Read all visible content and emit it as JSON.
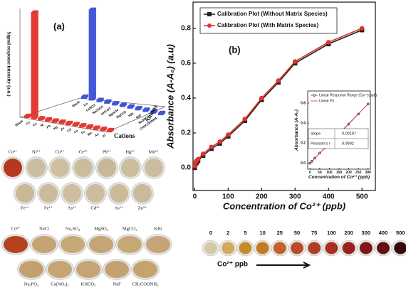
{
  "chart_data": [
    {
      "type": "bar3d",
      "label": "(a)",
      "ylabel": "Signal response intensity (a.u.)",
      "series": [
        {
          "name": "Cations",
          "color": "#e2322b",
          "categories": [
            "Blank",
            "Co",
            "Cu",
            "Ni",
            "Pb",
            "Hg",
            "Zn",
            "Cd",
            "Ce",
            "Fe",
            "Mn",
            "As",
            "Al"
          ],
          "values": [
            0.02,
            1.0,
            0.02,
            0.02,
            0.02,
            0.02,
            0.02,
            0.02,
            0.02,
            0.02,
            0.02,
            0.02,
            0.02
          ]
        },
        {
          "name": "Anions",
          "color": "#3b4fd6",
          "categories": [
            "Blank",
            "Co",
            "CaNO3",
            "Na2SO4",
            "KHCO3",
            "MgSO4",
            "MgCO3",
            "KBr",
            "NaF",
            "Na3PO4",
            "CH3COONH4"
          ],
          "values": [
            0.02,
            0.85,
            0.02,
            0.02,
            0.02,
            0.02,
            0.02,
            0.02,
            0.02,
            0.02,
            0.02
          ]
        }
      ]
    },
    {
      "type": "line",
      "label": "(b)",
      "xlabel": "Concentration of Co²⁺ (ppb)",
      "ylabel": "Absorbance (A-A₀) (a.u)",
      "x": [
        0,
        2,
        5,
        10,
        25,
        50,
        75,
        100,
        150,
        200,
        250,
        300,
        400,
        500
      ],
      "series": [
        {
          "name": "Calibration Plot (Without Matrix Species)",
          "color": "#222222",
          "marker": "square",
          "values": [
            0.0,
            0.02,
            0.03,
            0.04,
            0.07,
            0.11,
            0.14,
            0.18,
            0.27,
            0.39,
            0.49,
            0.6,
            0.71,
            0.79
          ]
        },
        {
          "name": "Calibration Plot (With Matrix Species)",
          "color": "#e2322b",
          "marker": "circle",
          "values": [
            0.01,
            0.03,
            0.04,
            0.05,
            0.08,
            0.12,
            0.15,
            0.19,
            0.28,
            0.4,
            0.5,
            0.61,
            0.72,
            0.8
          ]
        }
      ],
      "xlim": [
        -5,
        540
      ],
      "ylim": [
        -0.13,
        0.95
      ],
      "xticks": [
        0,
        100,
        200,
        300,
        400,
        500
      ],
      "yticks": [
        {
          "value": 0,
          "label": "0.0"
        },
        0.2,
        0.4,
        0.6,
        0.8
      ]
    },
    {
      "type": "line",
      "xlabel": "Concentration of Co²⁺ (ppb)",
      "ylabel": "Absorbance (A-A₀)",
      "x": [
        0,
        10,
        25,
        50,
        75,
        100,
        150,
        200,
        250,
        300
      ],
      "series": [
        {
          "name": "Linear Response Range (Co²⁺)(ppb)",
          "color": "#333333",
          "marker": "circle",
          "values": [
            0.0,
            0.02,
            0.05,
            0.1,
            0.15,
            0.2,
            0.29,
            0.39,
            0.49,
            0.59
          ]
        }
      ],
      "fit": {
        "name": "Linear Fit",
        "color": "#e2322b",
        "slope_label": "Slope",
        "slope": 0.00197,
        "r_label": "Pearson's r",
        "r": 0.9992
      },
      "xlim": [
        -12,
        312
      ],
      "ylim": [
        -0.06,
        0.72
      ],
      "xticks": [
        0,
        50,
        100,
        150,
        200,
        250,
        300
      ],
      "yticks": [
        {
          "value": 0,
          "label": "0.0"
        },
        0.2,
        0.4,
        0.6
      ]
    }
  ],
  "photos": {
    "rows": [
      {
        "labels": [
          "Co²⁺",
          "Ni²⁺",
          "Cu²⁺",
          "Ce³⁺",
          "Pb²⁺",
          "Hg²⁺",
          "Mn²⁺"
        ],
        "colors": [
          "#b43a1f",
          "#cbbd9f",
          "#cdbf9f",
          "#cbbd9c",
          "#c8b898",
          "#cbbe9f",
          "#cbbd9d"
        ]
      },
      {
        "labels": [
          "Fe²⁺",
          "Fe³⁺",
          "As³⁺",
          "Cd²⁺",
          "As⁵⁺",
          "Zn²⁺"
        ],
        "colors": [
          "#c9b997",
          "#cbbb99",
          "#cdbf9f",
          "#cbbd9d",
          "#cabb99",
          "#c9bb9a"
        ]
      },
      {
        "labels": [
          "Co²⁺",
          "NaCl",
          "Na₂SO₄",
          "MgSO₄",
          "MgCO₃",
          "KBr"
        ],
        "colors": [
          "#b4421f",
          "#c4a473",
          "#c7a878",
          "#c4a576",
          "#c6a877",
          "#c4a575"
        ]
      },
      {
        "labels": [
          "Na₃PO₄",
          "Ca(NO₃)₂",
          "KHCO₃",
          "NaF",
          "CH₃COONH₄"
        ],
        "colors": [
          "#c3a06d",
          "#c6a574",
          "#c6a473",
          "#c4a270",
          "#c5a26e"
        ]
      }
    ],
    "scale": {
      "title": "Co²⁺ ppb",
      "labels": [
        0,
        2,
        5,
        10,
        25,
        50,
        75,
        100,
        200,
        300,
        400,
        500
      ],
      "colors": [
        "#d8c9a6",
        "#d2aa5c",
        "#c98a2c",
        "#c47a25",
        "#c0622a",
        "#b84c2a",
        "#b03d26",
        "#a92e24",
        "#9b2020",
        "#7e161a",
        "#611014",
        "#360a0c"
      ]
    }
  }
}
